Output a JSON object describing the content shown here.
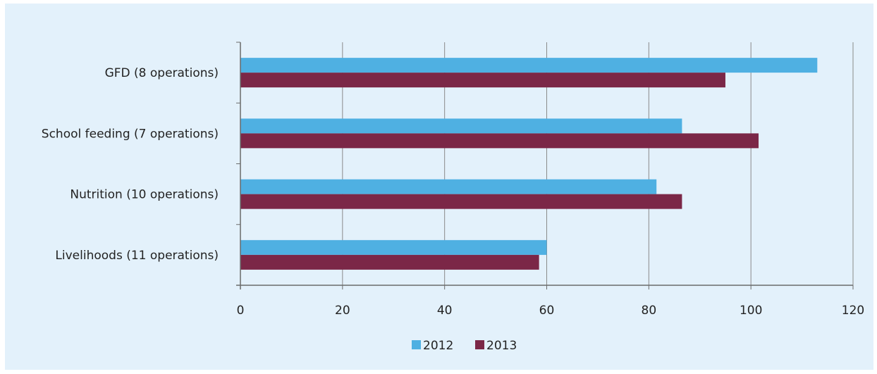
{
  "chart_data": {
    "type": "bar",
    "orientation": "horizontal",
    "categories": [
      "GFD (8 operations)",
      "School feeding (7 operations)",
      "Nutrition (10 operations)",
      "Livelihoods (11 operations)"
    ],
    "series": [
      {
        "name": "2012",
        "color": "#4fb0e2",
        "values": [
          113,
          86.5,
          81.5,
          60
        ]
      },
      {
        "name": "2013",
        "color": "#7b2747",
        "values": [
          95,
          101.5,
          86.5,
          58.5
        ]
      }
    ],
    "x_ticks": [
      "0",
      "20",
      "40",
      "60",
      "80",
      "100",
      "120"
    ],
    "xlim": [
      0,
      120
    ],
    "grid": "vertical",
    "legend": "bottom-center"
  }
}
